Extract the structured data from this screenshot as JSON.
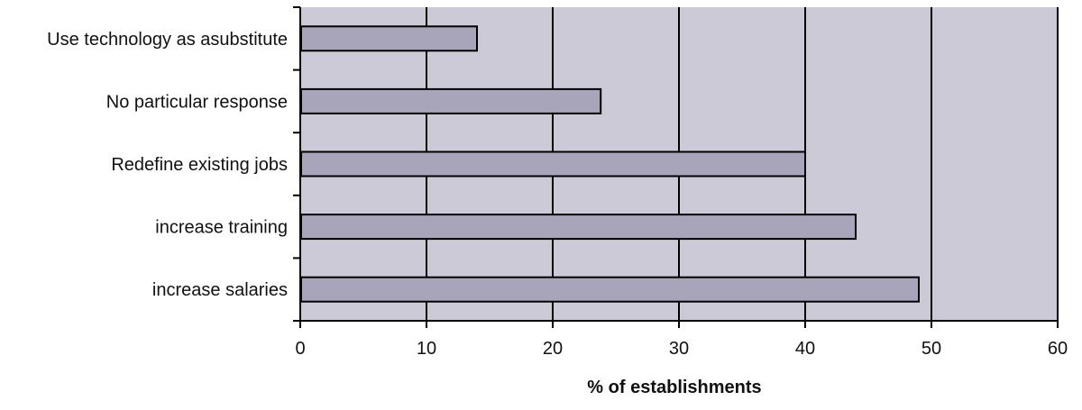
{
  "chart_data": {
    "type": "bar",
    "orientation": "horizontal",
    "categories": [
      "Use technology as asubstitute",
      "No particular response",
      "Redefine existing jobs",
      "increase training",
      "increase salaries"
    ],
    "values": [
      14,
      23.8,
      40,
      44,
      49
    ],
    "title": "",
    "xlabel": "% of establishments",
    "ylabel": "",
    "xlim": [
      0,
      60
    ],
    "xticks": [
      0,
      10,
      20,
      30,
      40,
      50,
      60
    ],
    "grid": true,
    "legend": "none",
    "colors": {
      "plot_background": "#cccad6",
      "bar_fill": "#a8a5bb",
      "bar_stroke": "#000000",
      "grid": "#000000"
    }
  }
}
